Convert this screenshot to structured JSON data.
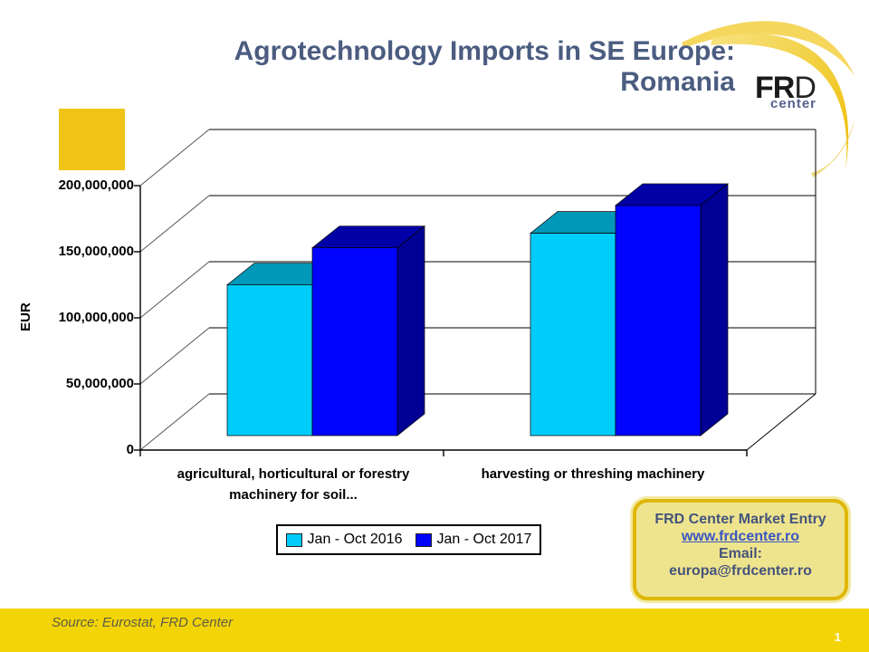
{
  "title": {
    "line1": "Agrotechnology Imports in SE Europe:",
    "line2": "Romania"
  },
  "logo": {
    "name": "FR",
    "name_d": "D",
    "sub": "center"
  },
  "chart_data": {
    "type": "bar",
    "style": "3d-clustered-column",
    "title": "",
    "xlabel": "",
    "ylabel": "EUR",
    "ylim": [
      0,
      200000000
    ],
    "grid": true,
    "legend_position": "bottom",
    "y_ticks": [
      "0",
      "50,000,000",
      "100,000,000",
      "150,000,000",
      "200,000,000"
    ],
    "y_tick_values": [
      0,
      50000000,
      100000000,
      150000000,
      200000000
    ],
    "categories": [
      "agricultural, horticultural or forestry machinery for soil...",
      "harvesting or threshing machinery"
    ],
    "category_label_lines": [
      [
        "agricultural, horticultural or forestry",
        "machinery for soil..."
      ],
      [
        "harvesting or threshing machinery",
        ""
      ]
    ],
    "series": [
      {
        "name": "Jan - Oct 2016",
        "color": "#00ccfa",
        "color_top": "#0098b8",
        "color_side": "#007e9c",
        "values": [
          114000000,
          153000000
        ]
      },
      {
        "name": "Jan - Oct 2017",
        "color": "#0004fe",
        "color_top": "#0000a6",
        "color_side": "#000094",
        "values": [
          142000000,
          174000000
        ]
      }
    ]
  },
  "contact_box": {
    "title": "FRD Center Market Entry",
    "link": "www.frdcenter.ro",
    "email_label": "Email:",
    "email": "europa@frdcenter.ro"
  },
  "footer": {
    "source": "Source: Eurostat, FRD Center",
    "page": "1"
  },
  "accents": {
    "square_color": "#f0c417",
    "bottom_bar_color": "#f3d406",
    "swoosh_gold": "#edbd00",
    "title_color": "#4b5c80"
  }
}
